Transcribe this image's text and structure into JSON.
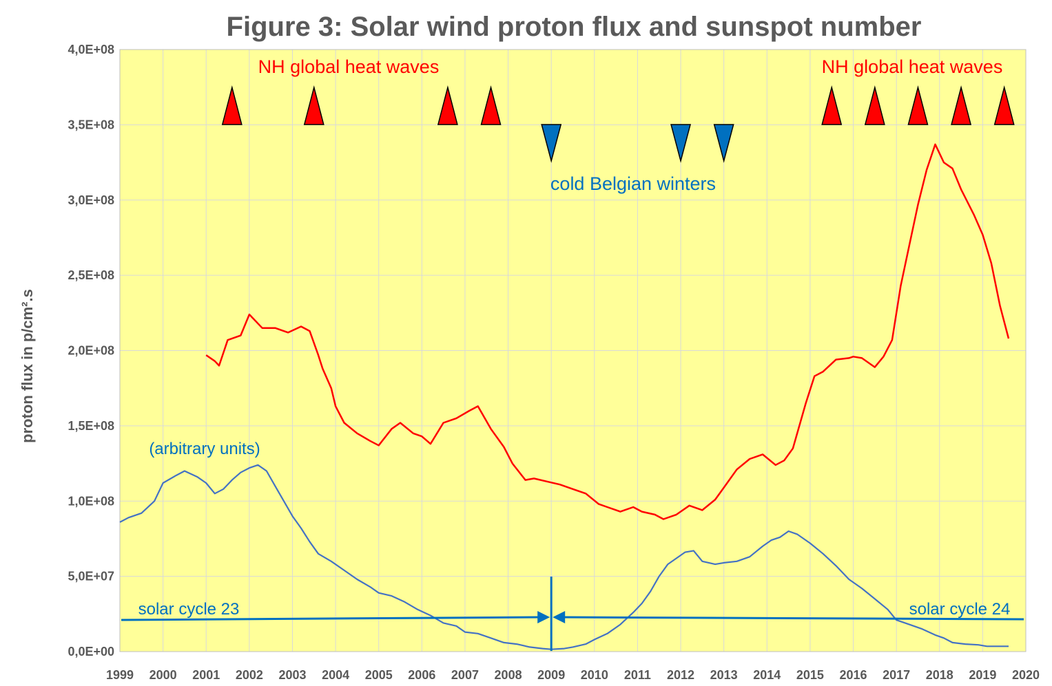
{
  "chart_data": {
    "type": "line",
    "title": "Figure 3: Solar wind proton flux and sunspot number",
    "ylabel": "proton flux in p/cm².s",
    "xlim": [
      1999,
      2020
    ],
    "ylim": [
      0,
      400000000
    ],
    "grid": true,
    "background_color": "#ffff99",
    "x_ticks": [
      1999,
      2000,
      2001,
      2002,
      2003,
      2004,
      2005,
      2006,
      2007,
      2008,
      2009,
      2010,
      2011,
      2012,
      2013,
      2014,
      2015,
      2016,
      2017,
      2018,
      2019,
      2020
    ],
    "x_tick_labels": [
      "1999",
      "2000",
      "2001",
      "2002",
      "2003",
      "2004",
      "2005",
      "2006",
      "2007",
      "2008",
      "2009",
      "2010",
      "2011",
      "2012",
      "2013",
      "2014",
      "2015",
      "2016",
      "2017",
      "2018",
      "2019",
      "2020"
    ],
    "y_ticks": [
      0,
      50000000,
      100000000,
      150000000,
      200000000,
      250000000,
      300000000,
      350000000,
      400000000
    ],
    "y_tick_labels": [
      "0,0E+00",
      "5,0E+07",
      "1,0E+08",
      "1,5E+08",
      "2,0E+08",
      "2,5E+08",
      "3,0E+08",
      "3,5E+08",
      "4,0E+08"
    ],
    "series": [
      {
        "color": "#ff0000",
        "x": [
          2001.0,
          2001.2,
          2001.3,
          2001.5,
          2001.8,
          2002.0,
          2002.3,
          2002.6,
          2002.9,
          2003.2,
          2003.4,
          2003.6,
          2003.7,
          2003.9,
          2004.0,
          2004.2,
          2004.5,
          2004.8,
          2005.0,
          2005.3,
          2005.5,
          2005.8,
          2006.0,
          2006.2,
          2006.5,
          2006.8,
          2007.1,
          2007.3,
          2007.6,
          2007.9,
          2008.1,
          2008.4,
          2008.6,
          2008.9,
          2009.2,
          2009.5,
          2009.8,
          2010.1,
          2010.3,
          2010.6,
          2010.9,
          2011.1,
          2011.4,
          2011.6,
          2011.9,
          2012.2,
          2012.5,
          2012.8,
          2013.0,
          2013.3,
          2013.6,
          2013.9,
          2014.2,
          2014.4,
          2014.6,
          2014.9,
          2015.1,
          2015.3,
          2015.6,
          2015.9,
          2016.0,
          2016.2,
          2016.5,
          2016.7,
          2016.9,
          2017.1,
          2017.3,
          2017.5,
          2017.7,
          2017.9,
          2018.1,
          2018.3,
          2018.5,
          2018.8,
          2019.0,
          2019.2,
          2019.4,
          2019.6
        ],
        "values": [
          197000000,
          193000000,
          190000000,
          207000000,
          210000000,
          224000000,
          215000000,
          215000000,
          212000000,
          216000000,
          213000000,
          197000000,
          188000000,
          175000000,
          163000000,
          152000000,
          145000000,
          140000000,
          137000000,
          148000000,
          152000000,
          145000000,
          143000000,
          138000000,
          152000000,
          155000000,
          160000000,
          163000000,
          148000000,
          136000000,
          125000000,
          114000000,
          115000000,
          113000000,
          111000000,
          108000000,
          105000000,
          98000000,
          96000000,
          93000000,
          96000000,
          93000000,
          91000000,
          88000000,
          91000000,
          97000000,
          94000000,
          101000000,
          109000000,
          121000000,
          128000000,
          131000000,
          124000000,
          127000000,
          135000000,
          165000000,
          183000000,
          186000000,
          194000000,
          195000000,
          196000000,
          195000000,
          189000000,
          196000000,
          207000000,
          243000000,
          270000000,
          297000000,
          320000000,
          337000000,
          325000000,
          321000000,
          307000000,
          290000000,
          277000000,
          258000000,
          230000000,
          208000000
        ]
      },
      {
        "color": "#4472c4",
        "x": [
          1999.0,
          1999.2,
          1999.5,
          1999.8,
          2000.0,
          2000.3,
          2000.5,
          2000.8,
          2001.0,
          2001.2,
          2001.4,
          2001.6,
          2001.8,
          2002.0,
          2002.2,
          2002.4,
          2002.6,
          2002.8,
          2003.0,
          2003.2,
          2003.4,
          2003.6,
          2003.9,
          2004.2,
          2004.5,
          2004.8,
          2005.0,
          2005.3,
          2005.6,
          2005.9,
          2006.2,
          2006.5,
          2006.8,
          2007.0,
          2007.3,
          2007.6,
          2007.9,
          2008.2,
          2008.5,
          2008.8,
          2009.0,
          2009.3,
          2009.5,
          2009.8,
          2010.0,
          2010.3,
          2010.6,
          2010.9,
          2011.1,
          2011.3,
          2011.5,
          2011.7,
          2011.9,
          2012.1,
          2012.3,
          2012.5,
          2012.8,
          2013.0,
          2013.3,
          2013.6,
          2013.9,
          2014.1,
          2014.3,
          2014.5,
          2014.7,
          2015.0,
          2015.3,
          2015.6,
          2015.9,
          2016.2,
          2016.5,
          2016.8,
          2017.0,
          2017.3,
          2017.6,
          2017.9,
          2018.1,
          2018.3,
          2018.6,
          2018.9,
          2019.1,
          2019.3,
          2019.6
        ],
        "values": [
          86000000,
          89000000,
          92000000,
          100000000,
          112000000,
          117000000,
          120000000,
          116000000,
          112000000,
          105000000,
          108000000,
          114000000,
          119000000,
          122000000,
          124000000,
          120000000,
          110000000,
          100000000,
          90000000,
          82000000,
          73000000,
          65000000,
          60000000,
          54000000,
          48000000,
          43000000,
          39000000,
          37000000,
          33000000,
          28000000,
          24000000,
          19000000,
          17000000,
          13000000,
          12000000,
          9000000,
          6000000,
          5000000,
          3000000,
          2000000,
          1500000,
          2000000,
          3000000,
          5000000,
          8000000,
          12000000,
          18000000,
          26000000,
          32000000,
          40000000,
          50000000,
          58000000,
          62000000,
          66000000,
          67000000,
          60000000,
          58000000,
          59000000,
          60000000,
          63000000,
          70000000,
          74000000,
          76000000,
          80000000,
          78000000,
          72000000,
          65000000,
          57000000,
          48000000,
          42000000,
          35000000,
          28000000,
          21000000,
          18000000,
          15000000,
          11000000,
          9000000,
          6000000,
          5000000,
          4500000,
          3500000,
          3500000,
          3500000
        ]
      }
    ],
    "annotations": {
      "heat_waves_label_left": "NH global heat waves",
      "heat_waves_label_right": "NH global heat waves",
      "cold_winters_label": "cold Belgian winters",
      "arbitrary_units_label": "(arbitrary units)",
      "cycle23_label": "solar cycle 23",
      "cycle24_label": "solar cycle 24",
      "heat_wave_years": [
        2001.6,
        2003.5,
        2006.6,
        2007.6,
        2015.5,
        2016.5,
        2017.5,
        2018.5,
        2019.5
      ],
      "cold_winter_years": [
        2009.0,
        2012.0,
        2013.0
      ],
      "cycle_boundary_year": 2009.0,
      "heat_color": "#ff0000",
      "cold_color": "#0070c0"
    }
  }
}
